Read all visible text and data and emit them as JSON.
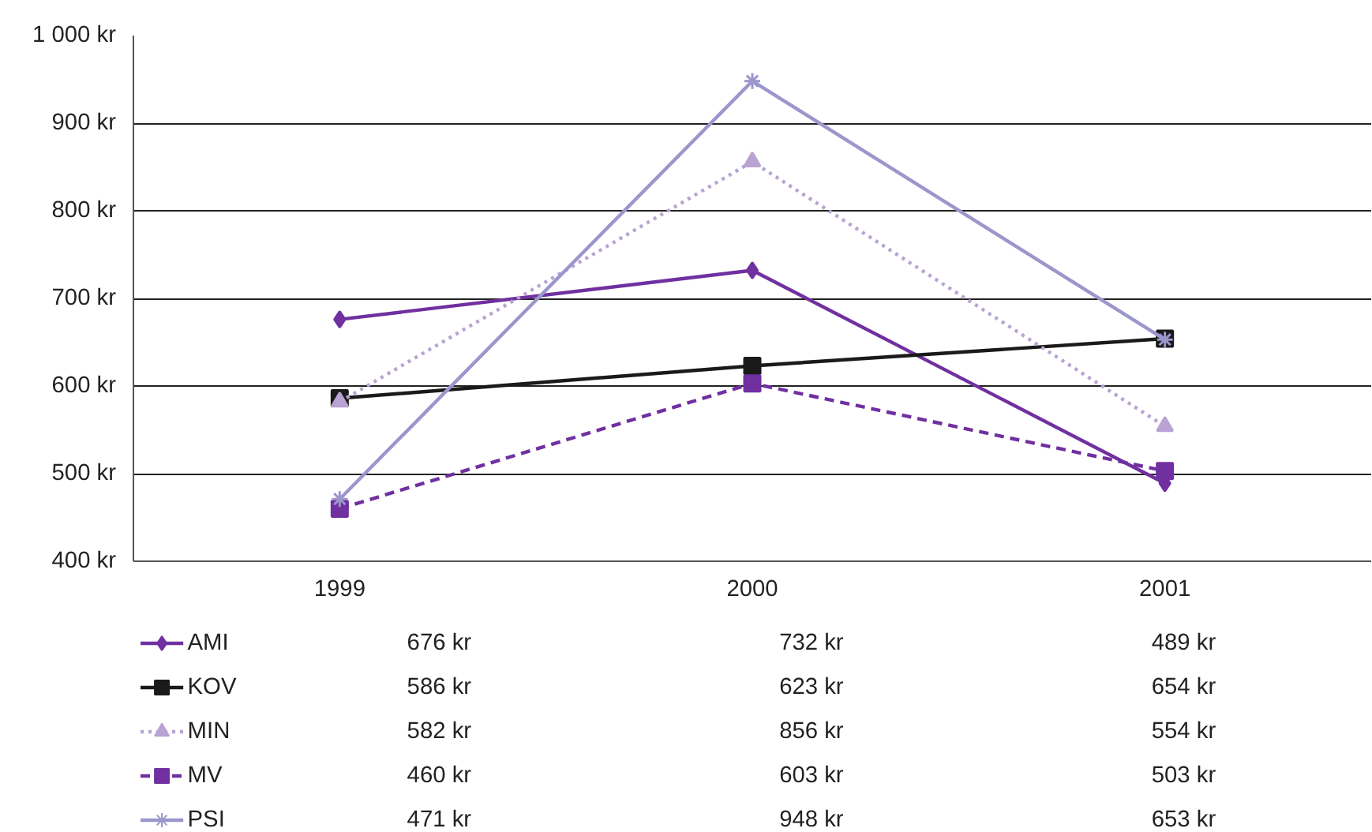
{
  "chart_data": {
    "type": "line",
    "categories": [
      "1999",
      "2000",
      "2001"
    ],
    "ylim": [
      400,
      1000
    ],
    "yticks": [
      {
        "value": 400,
        "label": "400 kr"
      },
      {
        "value": 500,
        "label": "500 kr"
      },
      {
        "value": 600,
        "label": "600 kr"
      },
      {
        "value": 700,
        "label": "700 kr"
      },
      {
        "value": 800,
        "label": "800 kr"
      },
      {
        "value": 900,
        "label": "900 kr"
      },
      {
        "value": 1000,
        "label": "1 000 kr"
      }
    ],
    "grid": "y",
    "legend": "bottom",
    "series": [
      {
        "name": "AMI",
        "color": "#7030a0",
        "values": [
          676,
          732,
          489
        ],
        "value_labels": [
          "676 kr",
          "732 kr",
          "489 kr"
        ],
        "marker": "diamond",
        "line_style": "solid"
      },
      {
        "name": "KOV",
        "color": "#1a1a1a",
        "values": [
          586,
          623,
          654
        ],
        "value_labels": [
          "586 kr",
          "623 kr",
          "654 kr"
        ],
        "marker": "square",
        "line_style": "solid"
      },
      {
        "name": "MIN",
        "color": "#b9a3d3",
        "values": [
          582,
          856,
          554
        ],
        "value_labels": [
          "582 kr",
          "856 kr",
          "554 kr"
        ],
        "marker": "triangle",
        "line_style": "dotted"
      },
      {
        "name": "MV",
        "color": "#7030a0",
        "values": [
          460,
          603,
          503
        ],
        "value_labels": [
          "460 kr",
          "603 kr",
          "503 kr"
        ],
        "marker": "square",
        "line_style": "dashed"
      },
      {
        "name": "PSI",
        "color": "#9b96cc",
        "values": [
          471,
          948,
          653
        ],
        "value_labels": [
          "471 kr",
          "948 kr",
          "653 kr"
        ],
        "marker": "cross",
        "line_style": "solid"
      }
    ]
  }
}
